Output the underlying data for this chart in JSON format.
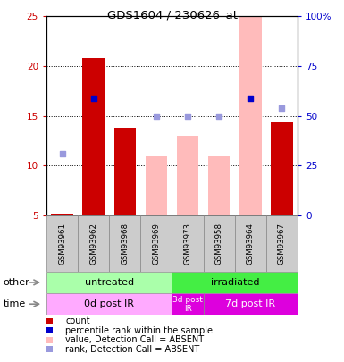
{
  "title": "GDS1604 / 230626_at",
  "samples": [
    "GSM93961",
    "GSM93962",
    "GSM93968",
    "GSM93969",
    "GSM93973",
    "GSM93958",
    "GSM93964",
    "GSM93967"
  ],
  "count_values": [
    5.2,
    20.8,
    13.8,
    null,
    null,
    null,
    null,
    14.4
  ],
  "absent_bar_values": [
    null,
    null,
    null,
    11.0,
    13.0,
    11.0,
    25.0,
    null
  ],
  "rank_values": [
    null,
    16.8,
    null,
    null,
    null,
    null,
    16.8,
    null
  ],
  "rank_absent_values": [
    11.2,
    null,
    null,
    15.0,
    15.0,
    15.0,
    null,
    15.8
  ],
  "ylim": [
    5,
    25
  ],
  "yticks_left": [
    5,
    10,
    15,
    20,
    25
  ],
  "yticks_right": [
    0,
    25,
    50,
    75,
    100
  ],
  "groups_other": [
    {
      "label": "untreated",
      "start": 0,
      "end": 4,
      "color": "#aaffaa"
    },
    {
      "label": "irradiated",
      "start": 4,
      "end": 8,
      "color": "#44ee44"
    }
  ],
  "groups_time": [
    {
      "label": "0d post IR",
      "start": 0,
      "end": 4,
      "color": "#ffaaff"
    },
    {
      "label": "3d post\nIR",
      "start": 4,
      "end": 5,
      "color": "#dd00dd"
    },
    {
      "label": "7d post IR",
      "start": 5,
      "end": 8,
      "color": "#dd00dd"
    }
  ],
  "bar_color_red": "#cc0000",
  "bar_color_pink": "#ffbbbb",
  "dot_color_blue": "#0000cc",
  "dot_color_lightblue": "#9999dd",
  "axis_left_color": "#cc0000",
  "axis_right_color": "#0000cc",
  "label_bg_color": "#cccccc",
  "bg_color": "#ffffff"
}
